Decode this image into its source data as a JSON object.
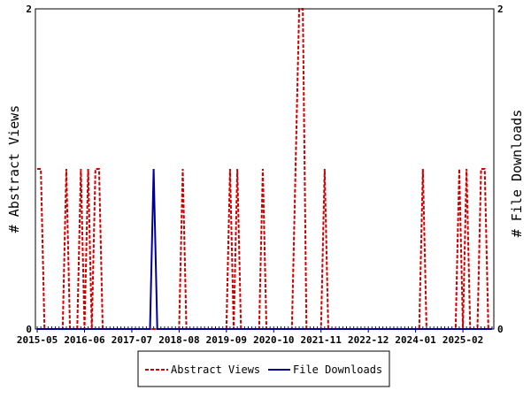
{
  "chart_data": {
    "type": "line",
    "title": "",
    "xlabel": "",
    "ylabel_left": "# Abstract Views",
    "ylabel_right": "# File Downloads",
    "ylim": [
      0,
      2
    ],
    "y_ticks_left": [
      "0",
      "2"
    ],
    "y_ticks_right": [
      "0",
      "2"
    ],
    "x_tick_labels": [
      "2015-05",
      "2016-06",
      "2017-07",
      "2018-08",
      "2019-09",
      "2020-10",
      "2021-11",
      "2022-12",
      "2024-01",
      "2025-02"
    ],
    "x_range_months": [
      "2015-05",
      "2025-10"
    ],
    "legend_position": "bottom-center",
    "grid": false,
    "series": [
      {
        "name": "Abstract Views",
        "color": "#cc0000",
        "style": "dashed",
        "points": [
          {
            "x": "2015-05",
            "y": 1
          },
          {
            "x": "2015-06",
            "y": 1
          },
          {
            "x": "2015-07",
            "y": 0
          },
          {
            "x": "2016-01",
            "y": 1
          },
          {
            "x": "2016-02",
            "y": 0
          },
          {
            "x": "2016-05",
            "y": 1
          },
          {
            "x": "2016-06",
            "y": 0
          },
          {
            "x": "2016-07",
            "y": 1
          },
          {
            "x": "2016-08",
            "y": 0
          },
          {
            "x": "2016-09",
            "y": 1
          },
          {
            "x": "2016-10",
            "y": 1
          },
          {
            "x": "2016-11",
            "y": 0
          },
          {
            "x": "2018-09",
            "y": 1
          },
          {
            "x": "2018-10",
            "y": 0
          },
          {
            "x": "2019-10",
            "y": 1
          },
          {
            "x": "2019-11",
            "y": 0
          },
          {
            "x": "2019-12",
            "y": 1
          },
          {
            "x": "2020-01",
            "y": 0
          },
          {
            "x": "2020-07",
            "y": 1
          },
          {
            "x": "2020-08",
            "y": 0
          },
          {
            "x": "2021-04",
            "y": 1
          },
          {
            "x": "2021-05",
            "y": 2
          },
          {
            "x": "2021-06",
            "y": 2
          },
          {
            "x": "2021-07",
            "y": 0
          },
          {
            "x": "2021-12",
            "y": 1
          },
          {
            "x": "2022-01",
            "y": 0
          },
          {
            "x": "2024-03",
            "y": 1
          },
          {
            "x": "2024-04",
            "y": 0
          },
          {
            "x": "2025-01",
            "y": 1
          },
          {
            "x": "2025-02",
            "y": 0
          },
          {
            "x": "2025-03",
            "y": 1
          },
          {
            "x": "2025-04",
            "y": 0
          },
          {
            "x": "2025-07",
            "y": 1
          },
          {
            "x": "2025-08",
            "y": 1
          },
          {
            "x": "2025-09",
            "y": 0
          }
        ]
      },
      {
        "name": "File Downloads",
        "color": "#000099",
        "style": "solid",
        "points": [
          {
            "x": "2018-01",
            "y": 1
          }
        ]
      }
    ]
  }
}
